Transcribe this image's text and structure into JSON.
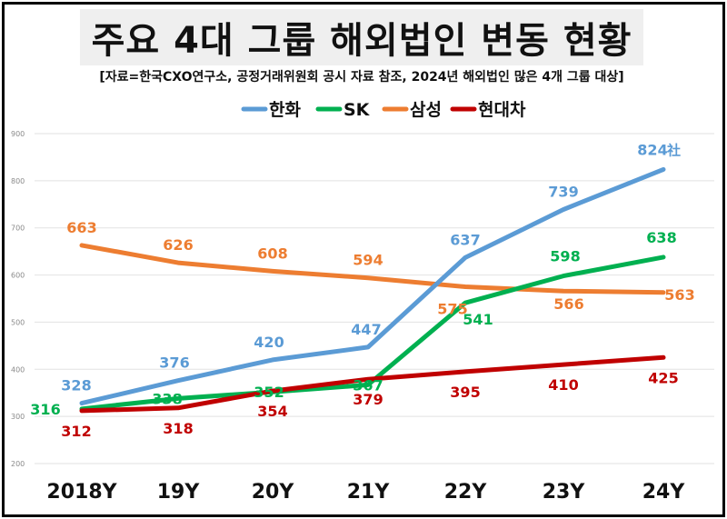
{
  "title": "주요 4대 그룹 해외법인 변동 현황",
  "source": "[자료=한국CXO연구소, 공정거래위원회 공시 자료 참조, 2024년 해외법인 많은 4개 그룹 대상]",
  "colors": {
    "hanwha": "#5b9bd5",
    "sk": "#00b050",
    "samsung": "#ed7d31",
    "hyundai": "#c00000",
    "grid": "#e2e2e2",
    "axis_text": "#8a8a8a"
  },
  "chart_data": {
    "type": "line",
    "categories": [
      "2018Y",
      "19Y",
      "20Y",
      "21Y",
      "22Y",
      "23Y",
      "24Y"
    ],
    "ylim": [
      200,
      900
    ],
    "yticks": [
      "200",
      "300",
      "400",
      "500",
      "600",
      "700",
      "800",
      "900"
    ],
    "grid": true,
    "legend_position": "top",
    "unit_suffix": "社",
    "series": [
      {
        "name": "한화",
        "color": "#5b9bd5",
        "values": [
          328,
          376,
          420,
          447,
          637,
          739,
          824
        ],
        "labels": [
          "328",
          "376",
          "420",
          "447",
          "637",
          "739",
          "824"
        ]
      },
      {
        "name": "SK",
        "color": "#00b050",
        "values": [
          316,
          338,
          352,
          367,
          541,
          598,
          638
        ],
        "labels": [
          "316",
          "338",
          "352",
          "367",
          "541",
          "598",
          "638"
        ]
      },
      {
        "name": "삼성",
        "color": "#ed7d31",
        "values": [
          663,
          626,
          608,
          594,
          575,
          566,
          563
        ],
        "labels": [
          "663",
          "626",
          "608",
          "594",
          "575",
          "566",
          "563"
        ]
      },
      {
        "name": "현대차",
        "color": "#c00000",
        "values": [
          312,
          318,
          354,
          379,
          395,
          410,
          425
        ],
        "labels": [
          "312",
          "318",
          "354",
          "379",
          "395",
          "410",
          "425"
        ]
      }
    ]
  }
}
